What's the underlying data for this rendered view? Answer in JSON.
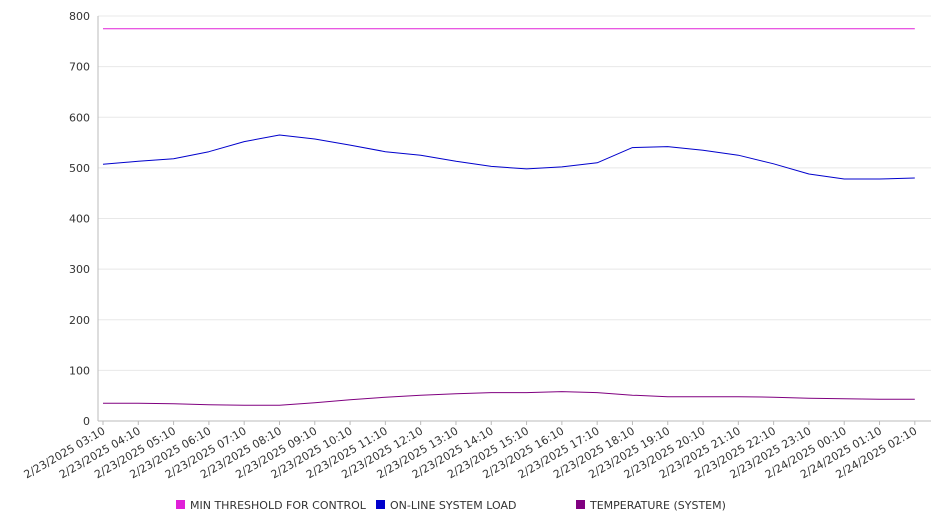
{
  "chart_data": {
    "type": "line",
    "title": "",
    "xlabel": "",
    "ylabel": "",
    "ylim": [
      0,
      800
    ],
    "yticks": [
      0,
      100,
      200,
      300,
      400,
      500,
      600,
      700,
      800
    ],
    "grid": true,
    "legend_position": "bottom",
    "x": [
      "2/23/2025 03:10",
      "2/23/2025 04:10",
      "2/23/2025 05:10",
      "2/23/2025 06:10",
      "2/23/2025 07:10",
      "2/23/2025 08:10",
      "2/23/2025 09:10",
      "2/23/2025 10:10",
      "2/23/2025 11:10",
      "2/23/2025 12:10",
      "2/23/2025 13:10",
      "2/23/2025 14:10",
      "2/23/2025 15:10",
      "2/23/2025 16:10",
      "2/23/2025 17:10",
      "2/23/2025 18:10",
      "2/23/2025 19:10",
      "2/23/2025 20:10",
      "2/23/2025 21:10",
      "2/23/2025 22:10",
      "2/23/2025 23:10",
      "2/24/2025 00:10",
      "2/24/2025 01:10",
      "2/24/2025 02:10"
    ],
    "series": [
      {
        "name": "MIN THRESHOLD FOR CONTROL",
        "color": "#e020d8",
        "values": [
          775,
          775,
          775,
          775,
          775,
          775,
          775,
          775,
          775,
          775,
          775,
          775,
          775,
          775,
          775,
          775,
          775,
          775,
          775,
          775,
          775,
          775,
          775,
          775
        ]
      },
      {
        "name": "ON-LINE SYSTEM LOAD",
        "color": "#0000cc",
        "values": [
          507,
          513,
          518,
          532,
          552,
          565,
          557,
          545,
          532,
          525,
          513,
          503,
          498,
          502,
          510,
          540,
          542,
          535,
          525,
          508,
          488,
          478,
          478,
          480
        ]
      },
      {
        "name": "TEMPERATURE (SYSTEM)",
        "color": "#800080",
        "values": [
          35,
          35,
          34,
          32,
          31,
          31,
          36,
          42,
          47,
          51,
          54,
          56,
          56,
          58,
          56,
          51,
          48,
          48,
          48,
          47,
          45,
          44,
          43,
          43
        ]
      }
    ]
  }
}
